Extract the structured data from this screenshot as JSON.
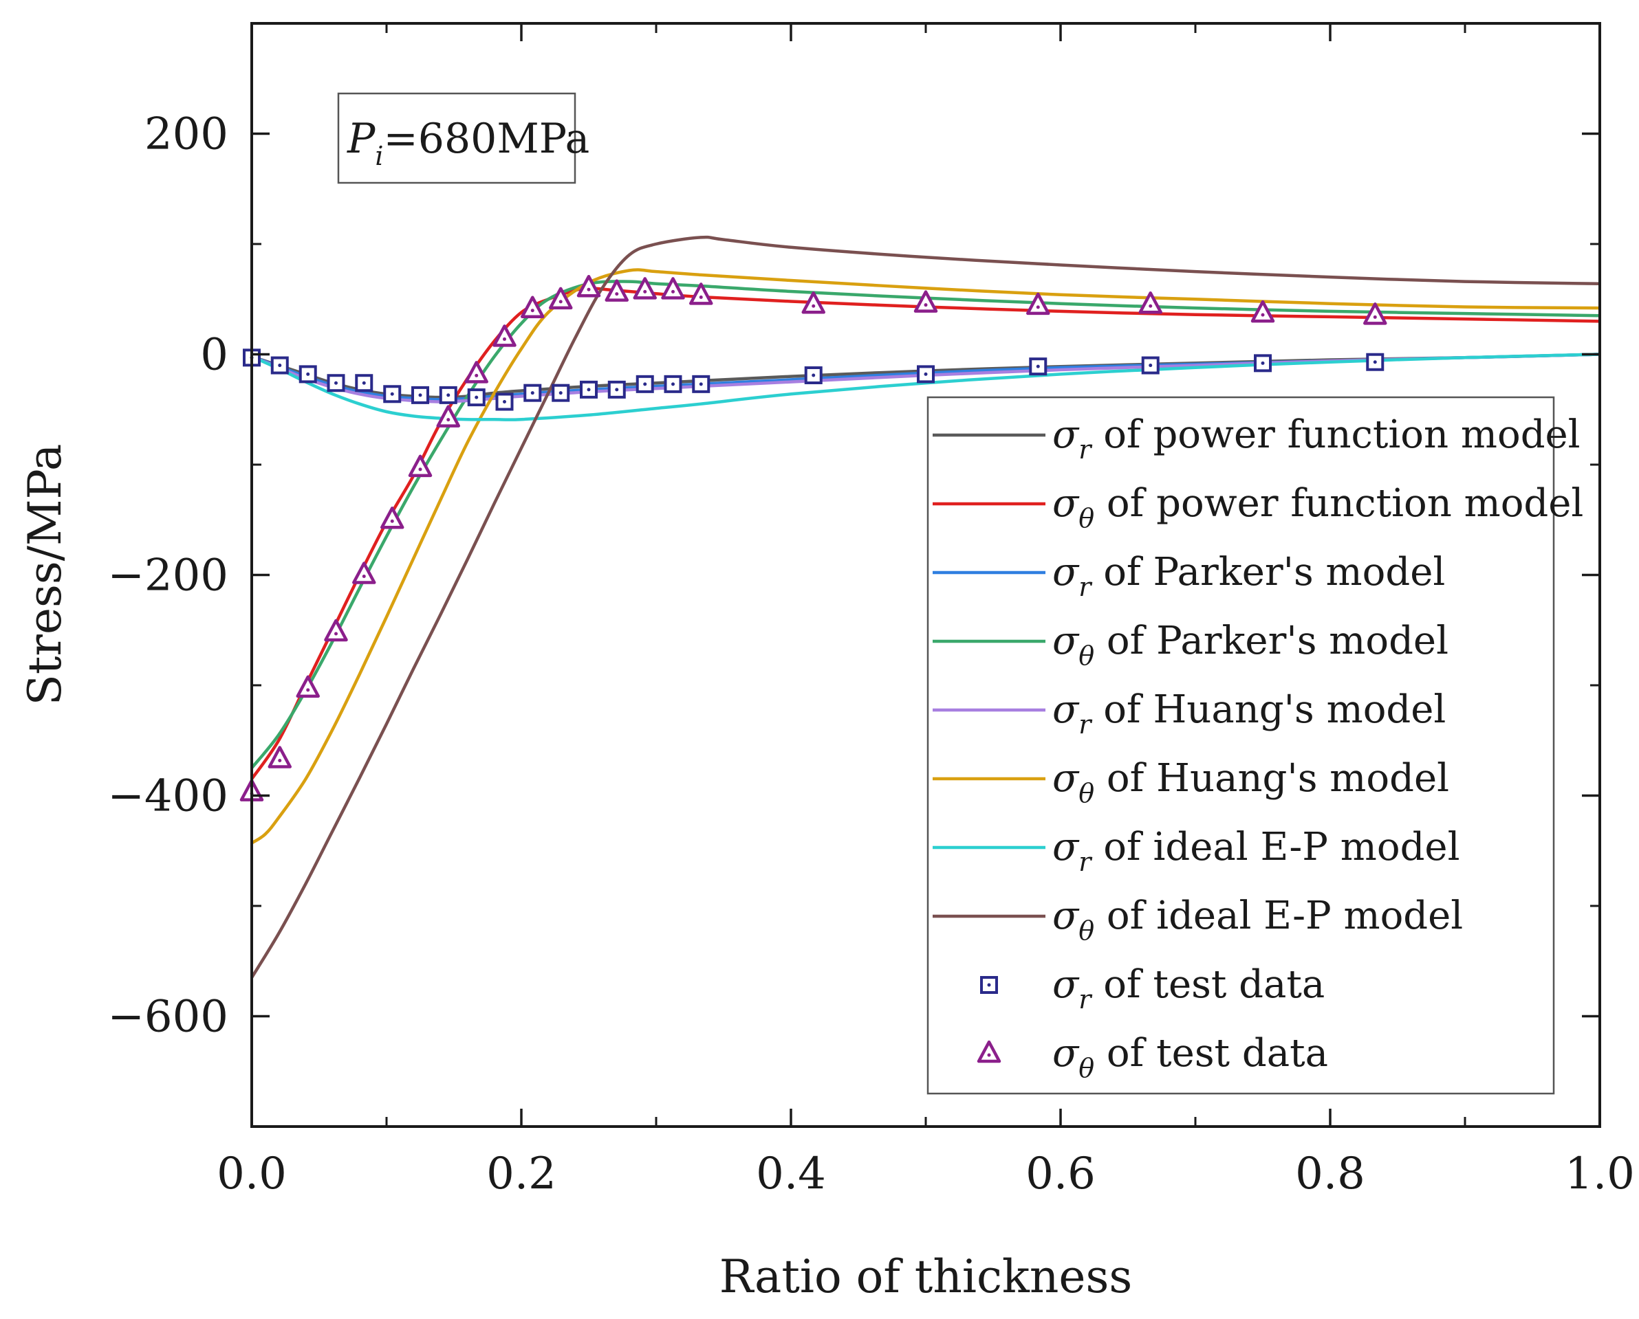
{
  "chart_data": {
    "type": "line",
    "title": "",
    "xlabel": "Ratio of thickness",
    "ylabel": "Stress/MPa",
    "xlim": [
      0.0,
      1.0
    ],
    "ylim": [
      -700,
      300
    ],
    "x_ticks": [
      0.0,
      0.2,
      0.4,
      0.6,
      0.8,
      1.0
    ],
    "x_tick_labels": [
      "0.0",
      "0.2",
      "0.4",
      "0.6",
      "0.8",
      "1.0"
    ],
    "y_ticks": [
      -600,
      -400,
      -200,
      0,
      200
    ],
    "y_tick_labels": [
      "−600",
      "−400",
      "−200",
      "0",
      "200"
    ],
    "annotation": {
      "prefix": "P",
      "subscript": "i",
      "text": "=680MPa"
    },
    "legend_position": "bottom-right",
    "series": [
      {
        "name": "σr of power function model",
        "symbol": "σ",
        "subscript": "r",
        "suffix": " of power function model",
        "kind": "line",
        "color": "#5a5a5a",
        "x": [
          0,
          0.02,
          0.04,
          0.06,
          0.08,
          0.1,
          0.12,
          0.14,
          0.16,
          0.18,
          0.2,
          0.25,
          0.3,
          0.333,
          0.4,
          0.5,
          0.6,
          0.7,
          0.8,
          0.9,
          1.0
        ],
        "y": [
          -2,
          -10,
          -18,
          -26,
          -32,
          -36,
          -38,
          -39,
          -38,
          -35,
          -33,
          -29,
          -26,
          -24,
          -20,
          -15,
          -11,
          -8,
          -5,
          -3,
          0
        ]
      },
      {
        "name": "σθ of power function model",
        "symbol": "σ",
        "subscript": "θ",
        "suffix": " of power function model",
        "kind": "line",
        "color": "#e0201f",
        "x": [
          0,
          0.02,
          0.04,
          0.06,
          0.08,
          0.1,
          0.12,
          0.14,
          0.16,
          0.18,
          0.2,
          0.22,
          0.24,
          0.25,
          0.27,
          0.3,
          0.333,
          0.4,
          0.5,
          0.6,
          0.7,
          0.8,
          0.9,
          1.0
        ],
        "y": [
          -385,
          -350,
          -300,
          -250,
          -200,
          -152,
          -110,
          -62,
          -22,
          12,
          38,
          50,
          58,
          60,
          58,
          55,
          52,
          48,
          43,
          39,
          36,
          34,
          32,
          30
        ]
      },
      {
        "name": "σr of Parker's model",
        "symbol": "σ",
        "subscript": "r",
        "suffix": " of Parker's model",
        "kind": "line",
        "color": "#2f7fe0",
        "x": [
          0,
          0.02,
          0.04,
          0.06,
          0.08,
          0.1,
          0.12,
          0.14,
          0.16,
          0.18,
          0.2,
          0.25,
          0.3,
          0.333,
          0.4,
          0.5,
          0.6,
          0.7,
          0.8,
          0.9,
          1.0
        ],
        "y": [
          -2,
          -11,
          -20,
          -28,
          -34,
          -38,
          -40,
          -41,
          -40,
          -38,
          -36,
          -32,
          -29,
          -27,
          -23,
          -17,
          -12,
          -9,
          -6,
          -3,
          0
        ]
      },
      {
        "name": "σθ of Parker's model",
        "symbol": "σ",
        "subscript": "θ",
        "suffix": " of Parker's model",
        "kind": "line",
        "color": "#3aa86b",
        "x": [
          0,
          0.02,
          0.04,
          0.06,
          0.08,
          0.1,
          0.12,
          0.14,
          0.16,
          0.18,
          0.2,
          0.22,
          0.25,
          0.28,
          0.3,
          0.333,
          0.4,
          0.5,
          0.6,
          0.7,
          0.8,
          0.9,
          1.0
        ],
        "y": [
          -375,
          -345,
          -305,
          -260,
          -212,
          -165,
          -120,
          -78,
          -38,
          -2,
          28,
          50,
          64,
          66,
          64,
          62,
          57,
          51,
          46,
          42,
          39,
          37,
          35
        ]
      },
      {
        "name": "σr of Huang's model",
        "symbol": "σ",
        "subscript": "r",
        "suffix": " of Huang's model",
        "kind": "line",
        "color": "#a77fe0",
        "x": [
          0,
          0.02,
          0.04,
          0.06,
          0.08,
          0.1,
          0.12,
          0.14,
          0.16,
          0.18,
          0.2,
          0.25,
          0.3,
          0.333,
          0.4,
          0.5,
          0.6,
          0.7,
          0.8,
          0.9,
          1.0
        ],
        "y": [
          -2,
          -12,
          -22,
          -30,
          -36,
          -40,
          -42,
          -43,
          -42,
          -40,
          -38,
          -34,
          -31,
          -29,
          -25,
          -19,
          -14,
          -10,
          -6,
          -3,
          0
        ]
      },
      {
        "name": "σθ of Huang's model",
        "symbol": "σ",
        "subscript": "θ",
        "suffix": " of Huang's model",
        "kind": "line",
        "color": "#d9a010",
        "x": [
          0,
          0.01,
          0.02,
          0.04,
          0.06,
          0.08,
          0.1,
          0.12,
          0.14,
          0.16,
          0.18,
          0.2,
          0.22,
          0.25,
          0.28,
          0.3,
          0.333,
          0.4,
          0.5,
          0.6,
          0.7,
          0.8,
          0.9,
          1.0
        ],
        "y": [
          -443,
          -435,
          -420,
          -385,
          -340,
          -290,
          -238,
          -185,
          -132,
          -80,
          -35,
          5,
          38,
          65,
          76,
          75,
          72,
          67,
          60,
          54,
          50,
          46,
          43,
          42
        ]
      },
      {
        "name": "σr of ideal E-P model",
        "symbol": "σ",
        "subscript": "r",
        "suffix": " of ideal E-P model",
        "kind": "line",
        "color": "#2ccfd0",
        "x": [
          0,
          0.02,
          0.04,
          0.06,
          0.08,
          0.1,
          0.12,
          0.14,
          0.16,
          0.18,
          0.2,
          0.25,
          0.3,
          0.333,
          0.4,
          0.5,
          0.6,
          0.7,
          0.8,
          0.9,
          1.0
        ],
        "y": [
          -2,
          -13,
          -25,
          -36,
          -45,
          -52,
          -56,
          -58,
          -59,
          -59,
          -59,
          -55,
          -49,
          -45,
          -36,
          -26,
          -18,
          -12,
          -7,
          -3,
          0
        ]
      },
      {
        "name": "σθ of ideal E-P model",
        "symbol": "σ",
        "subscript": "θ",
        "suffix": " of ideal E-P model",
        "kind": "line",
        "color": "#7a5050",
        "x": [
          0,
          0.02,
          0.04,
          0.06,
          0.08,
          0.1,
          0.12,
          0.14,
          0.16,
          0.18,
          0.2,
          0.22,
          0.24,
          0.26,
          0.28,
          0.3,
          0.333,
          0.35,
          0.4,
          0.5,
          0.6,
          0.7,
          0.8,
          0.9,
          1.0
        ],
        "y": [
          -565,
          -525,
          -480,
          -432,
          -384,
          -335,
          -285,
          -236,
          -186,
          -135,
          -85,
          -35,
          15,
          60,
          90,
          100,
          106,
          104,
          97,
          88,
          81,
          75,
          70,
          66,
          64
        ]
      },
      {
        "name": "σr of test data",
        "symbol": "σ",
        "subscript": "r",
        "suffix": " of test data",
        "kind": "marker-square",
        "color": "#2a2a8a",
        "x": [
          0,
          0.0208,
          0.0417,
          0.0625,
          0.0833,
          0.1042,
          0.125,
          0.1458,
          0.1667,
          0.1875,
          0.2083,
          0.2292,
          0.25,
          0.2708,
          0.2917,
          0.3125,
          0.3333,
          0.4167,
          0.5,
          0.5833,
          0.6667,
          0.75,
          0.8333
        ],
        "y": [
          -3,
          -10,
          -18,
          -26,
          -26,
          -36,
          -37,
          -37,
          -39,
          -43,
          -35,
          -35,
          -32,
          -32,
          -27,
          -27,
          -27,
          -19,
          -18,
          -11,
          -10,
          -8,
          -7
        ]
      },
      {
        "name": "σθ of test data",
        "symbol": "σ",
        "subscript": "θ",
        "suffix": " of test data",
        "kind": "marker-triangle",
        "color": "#8b1f8b",
        "x": [
          0,
          0.0208,
          0.0417,
          0.0625,
          0.0833,
          0.1042,
          0.125,
          0.1458,
          0.1667,
          0.1875,
          0.2083,
          0.2292,
          0.25,
          0.2708,
          0.2917,
          0.3125,
          0.3333,
          0.4167,
          0.5,
          0.5833,
          0.6667,
          0.75,
          0.8333
        ],
        "y": [
          -397,
          -367,
          -303,
          -252,
          -200,
          -150,
          -103,
          -58,
          -18,
          15,
          41,
          49,
          60,
          56,
          58,
          58,
          53,
          45,
          46,
          44,
          45,
          37,
          35
        ]
      }
    ]
  }
}
